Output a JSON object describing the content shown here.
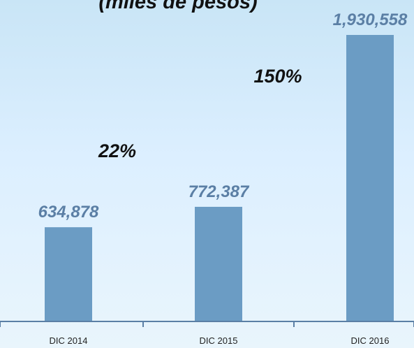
{
  "chart_data": {
    "type": "bar",
    "subtitle": "(miles de pesos)",
    "categories": [
      "DIC 2014",
      "DIC 2015",
      "DIC 2016"
    ],
    "values": [
      634878,
      772387,
      1930558
    ],
    "value_labels": [
      "634,878",
      "772,387",
      "1,930,558"
    ],
    "growth_annotations": [
      "22%",
      "150%"
    ],
    "ylim": [
      0,
      2000000
    ],
    "grid": false,
    "colors": {
      "bar": "#6b9cc4",
      "value_label": "#5b7fa5",
      "axis": "#5b7fa5"
    }
  }
}
